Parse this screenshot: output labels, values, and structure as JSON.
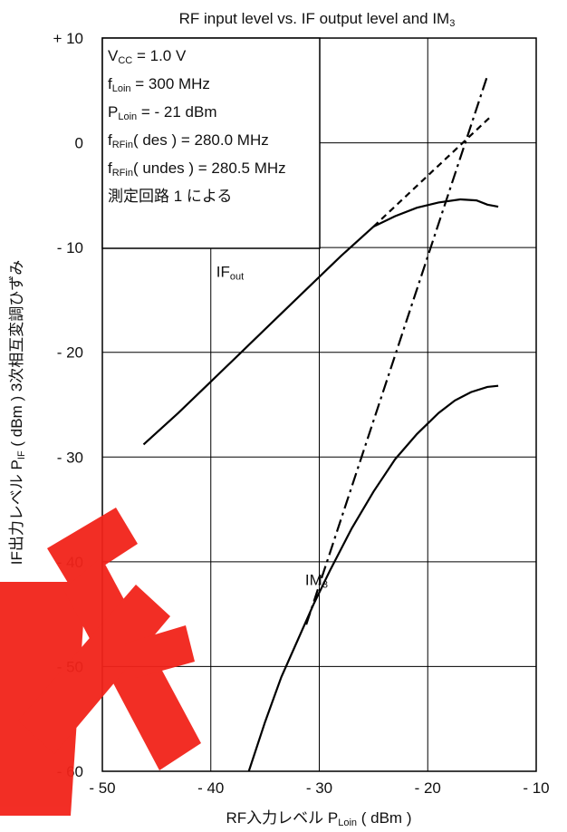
{
  "chart_data": {
    "type": "line",
    "title": "RF input level vs. IF output level and IM3",
    "title_main": "RF input level vs. IF output level and IM",
    "title_sub": "3",
    "xlabel": "RF入力レベル PLoin ( dBm )",
    "xlabel_main": "RF入力レベル P",
    "xlabel_sub": "Loin",
    "xlabel_tail": " ( dBm )",
    "ylabel": "IF出力レベル PIF ( dBm ) 3次相互変調ひずみ",
    "ylabel_main": "IF出力レベル P",
    "ylabel_sub": "IF",
    "ylabel_tail": " ( dBm ) 3次相互変調ひずみ",
    "xlim": [
      -50,
      -10
    ],
    "ylim": [
      -60,
      10
    ],
    "xticks": [
      -50,
      -40,
      -30,
      -20,
      -10
    ],
    "xtick_labels": [
      "- 50",
      "- 40",
      "- 30",
      "- 20",
      "- 10"
    ],
    "yticks": [
      10,
      0,
      -10,
      -20,
      -30,
      -40,
      -50,
      -60
    ],
    "ytick_labels": [
      "+ 10",
      "0",
      "- 10",
      "- 20",
      "- 30",
      "- 40",
      "- 50",
      "- 60"
    ],
    "grid": true,
    "conditions": [
      {
        "main": "V",
        "sub": "CC",
        "rest": " = 1.0 V"
      },
      {
        "main": "f",
        "sub": "Loin",
        "rest": " = 300 MHz"
      },
      {
        "main": "P",
        "sub": "Loin",
        "rest": " =  - 21 dBm"
      },
      {
        "main": "f",
        "sub": "RFin",
        "rest": "( des ) = 280.0 MHz"
      },
      {
        "main": "f",
        "sub": "RFin",
        "rest": "( undes ) = 280.5 MHz"
      },
      {
        "main": "測定回路 1 による",
        "sub": "",
        "rest": ""
      }
    ],
    "series": [
      {
        "name": "IFout",
        "label_main": "IF",
        "label_sub": "out",
        "style": "solid",
        "x": [
          -46.2,
          -43,
          -40,
          -37,
          -34,
          -31,
          -28,
          -25,
          -23,
          -21,
          -19,
          -17,
          -15.5,
          -14.5,
          -13.5
        ],
        "y": [
          -28.8,
          -25.8,
          -22.8,
          -19.8,
          -16.8,
          -13.8,
          -10.8,
          -8,
          -7,
          -6.2,
          -5.7,
          -5.4,
          -5.5,
          -5.9,
          -6.1
        ]
      },
      {
        "name": "IFout extrapolation",
        "style": "dashed",
        "x": [
          -25,
          -14.2
        ],
        "y": [
          -8,
          2.5
        ]
      },
      {
        "name": "IM3",
        "label_main": "IM",
        "label_sub": "3",
        "style": "solid",
        "x": [
          -36.5,
          -35,
          -33.5,
          -32,
          -30.5,
          -29,
          -27,
          -25,
          -23,
          -21,
          -19,
          -17.5,
          -16,
          -14.5,
          -13.5
        ],
        "y": [
          -60,
          -55.3,
          -51,
          -47.5,
          -44,
          -40.8,
          -36.8,
          -33.3,
          -30.2,
          -27.8,
          -25.8,
          -24.6,
          -23.8,
          -23.3,
          -23.2
        ]
      },
      {
        "name": "IM3 extrapolation",
        "style": "dashdot",
        "x": [
          -31.2,
          -14.5
        ],
        "y": [
          -46,
          6.4
        ]
      }
    ],
    "series_labels": [
      {
        "series": 0,
        "x": -39.5,
        "y": -12.8
      },
      {
        "series": 2,
        "x": -31.3,
        "y": -42.2
      }
    ]
  }
}
